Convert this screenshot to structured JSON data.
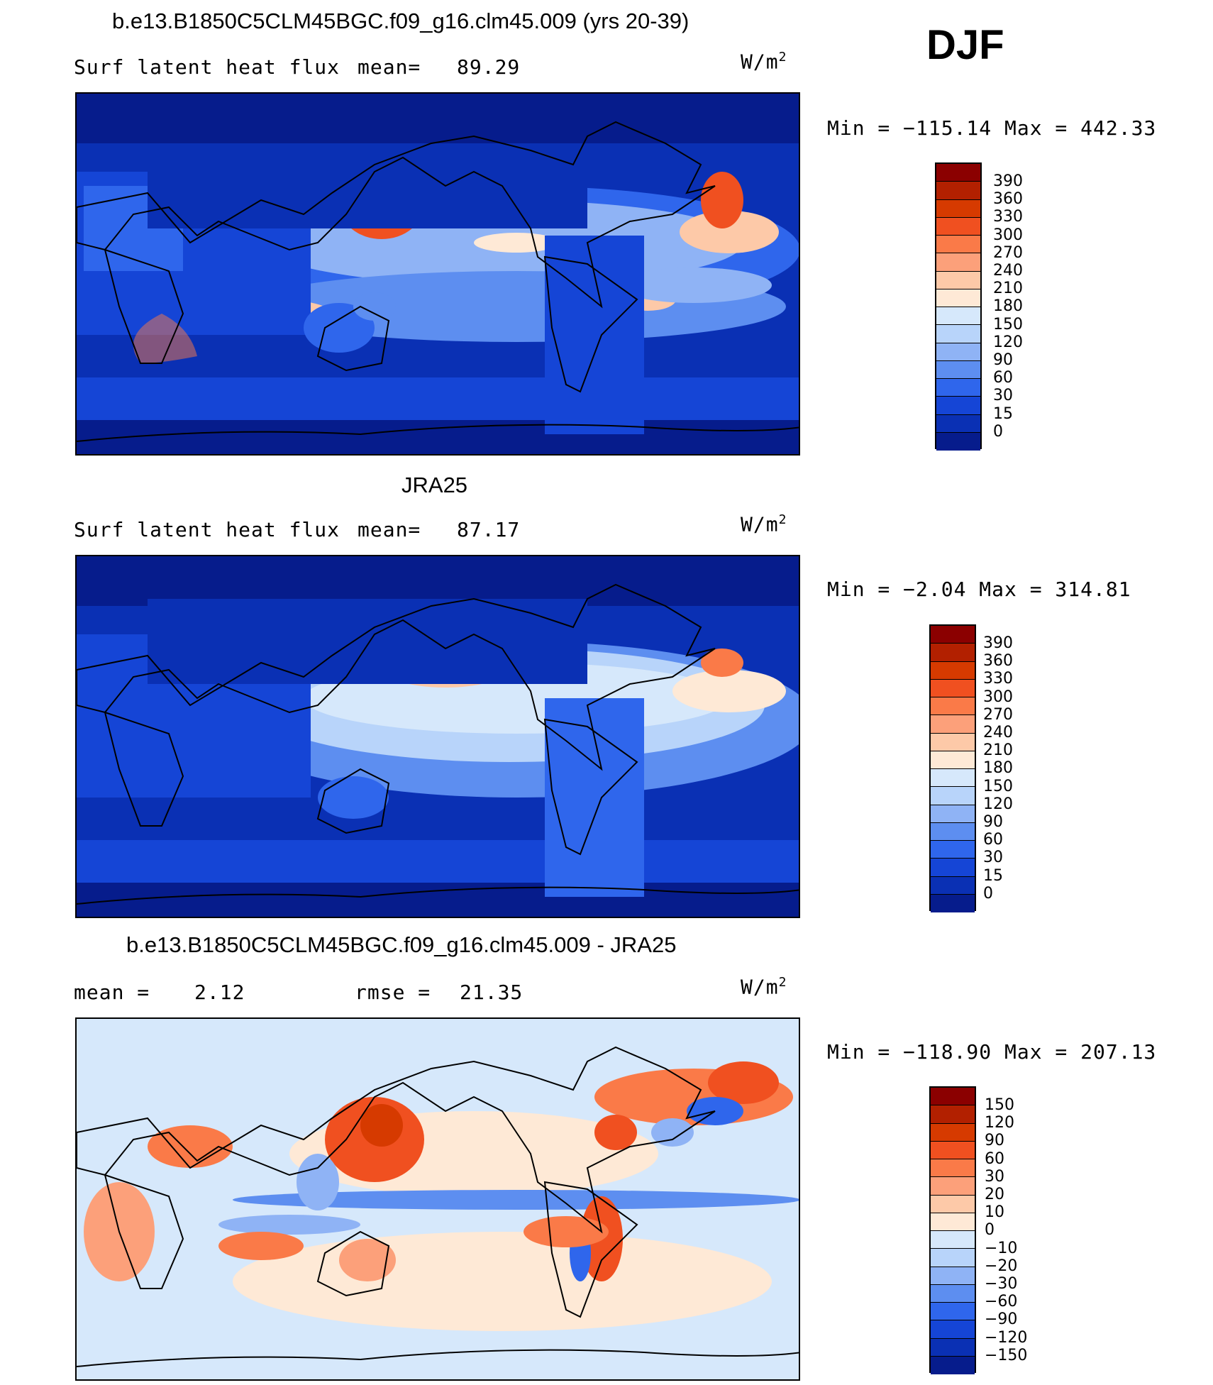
{
  "season": "DJF",
  "unit_prefix": "W/m",
  "unit_sup": "2",
  "panels": [
    {
      "title": "b.e13.B1850C5CLM45BGC.f09_g16.clm45.009 (yrs 20-39)",
      "left_label": "Surf latent heat flux",
      "stat_label": "mean=",
      "stat_value": "89.29",
      "minmax": "Min = −115.14 Max = 442.33",
      "colorbar_ticks": [
        "390",
        "360",
        "330",
        "300",
        "270",
        "240",
        "210",
        "180",
        "150",
        "120",
        "90",
        "60",
        "30",
        "15",
        "0"
      ]
    },
    {
      "title": "JRA25",
      "left_label": "Surf latent heat flux",
      "stat_label": "mean=",
      "stat_value": "87.17",
      "minmax": "Min =   −2.04 Max = 314.81",
      "colorbar_ticks": [
        "390",
        "360",
        "330",
        "300",
        "270",
        "240",
        "210",
        "180",
        "150",
        "120",
        "90",
        "60",
        "30",
        "15",
        "0"
      ]
    },
    {
      "title": "b.e13.B1850C5CLM45BGC.f09_g16.clm45.009 - JRA25",
      "mean_label": "mean =",
      "mean_value": "2.12",
      "rmse_label": "rmse =",
      "rmse_value": "21.35",
      "minmax": "Min = −118.90 Max = 207.13",
      "colorbar_ticks": [
        "150",
        "120",
        "90",
        "60",
        "30",
        "20",
        "10",
        "0",
        "−10",
        "−20",
        "−30",
        "−60",
        "−90",
        "−120",
        "−150"
      ]
    }
  ],
  "colors": {
    "abs_scale": [
      "#8b0000",
      "#b22000",
      "#d63a00",
      "#f05020",
      "#fa7a48",
      "#fca07a",
      "#fdc9a8",
      "#fee9d6",
      "#d6e8fb",
      "#b8d4fa",
      "#8fb3f5",
      "#5d8ef0",
      "#2f66ec",
      "#1545d6",
      "#0a30b4",
      "#061c8c"
    ],
    "diff_scale": [
      "#8b0000",
      "#b22000",
      "#d63a00",
      "#f05020",
      "#fa7a48",
      "#fca07a",
      "#fdc9a8",
      "#fee9d6",
      "#d6e8fb",
      "#b8d4fa",
      "#8fb3f5",
      "#5d8ef0",
      "#2f66ec",
      "#1545d6",
      "#0a30b4",
      "#061c8c"
    ],
    "land_outline": "#000000"
  }
}
